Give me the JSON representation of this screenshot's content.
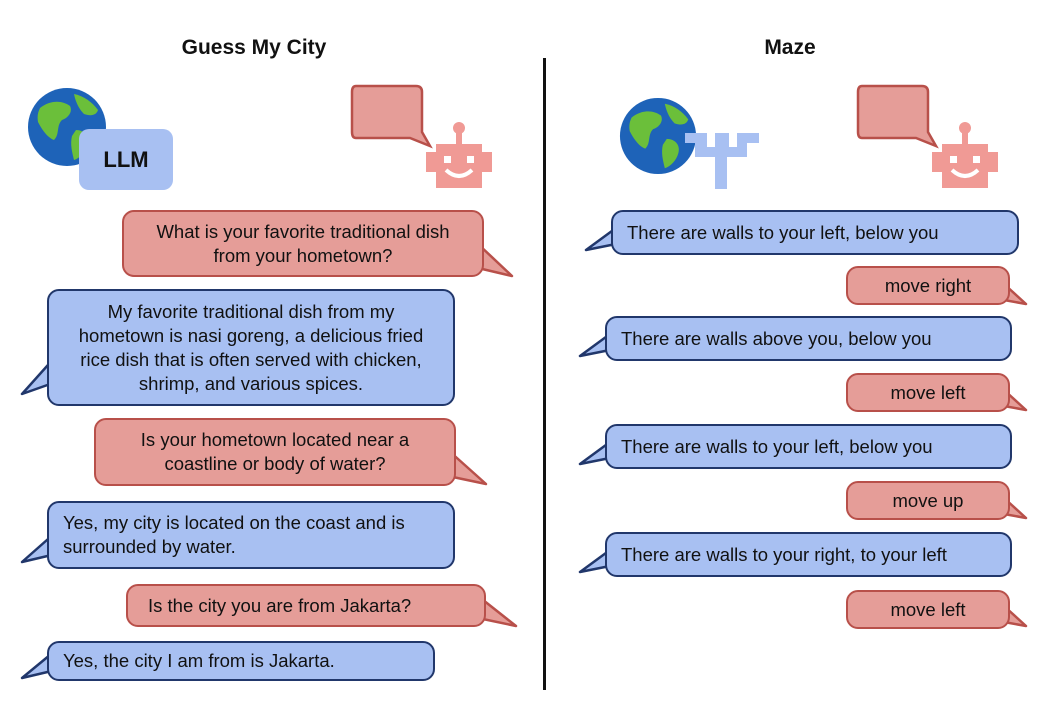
{
  "left_panel": {
    "title": "Guess My City",
    "llm_label": "LLM",
    "messages": [
      {
        "speaker": "agent",
        "text": "What is your favorite traditional dish from your hometown?"
      },
      {
        "speaker": "environment",
        "text": "My favorite traditional dish from my hometown is nasi goreng, a delicious fried rice dish that is often served with chicken, shrimp, and various spices."
      },
      {
        "speaker": "agent",
        "text": "Is your hometown located near a coastline or body of water?"
      },
      {
        "speaker": "environment",
        "text": "Yes, my city is located on the coast and is surrounded by water."
      },
      {
        "speaker": "agent",
        "text": "Is the city you are from Jakarta?"
      },
      {
        "speaker": "environment",
        "text": "Yes, the city I am from is Jakarta."
      }
    ]
  },
  "right_panel": {
    "title": "Maze",
    "messages": [
      {
        "speaker": "environment",
        "text": "There are walls to your left, below you"
      },
      {
        "speaker": "agent",
        "text": "move right"
      },
      {
        "speaker": "environment",
        "text": "There are walls above you, below you"
      },
      {
        "speaker": "agent",
        "text": "move left"
      },
      {
        "speaker": "environment",
        "text": "There are walls to your left, below you"
      },
      {
        "speaker": "agent",
        "text": "move up"
      },
      {
        "speaker": "environment",
        "text": "There are walls to your right, to your left"
      },
      {
        "speaker": "agent",
        "text": "move left"
      }
    ]
  },
  "icons": [
    "globe-icon",
    "speech-bubble-icon",
    "robot-icon",
    "maze-icon"
  ],
  "colors": {
    "agent_fill": "#e59d98",
    "agent_border": "#b8504a",
    "environment_fill": "#a8c0f2",
    "environment_border": "#21376b",
    "robot": "#f09a95",
    "maze": "#a8c0f2"
  }
}
